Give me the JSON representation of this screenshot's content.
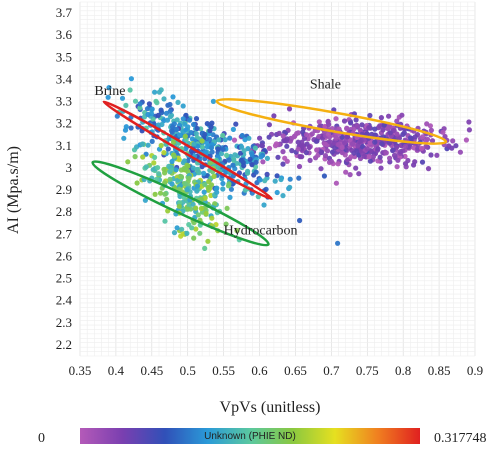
{
  "chart_data": {
    "type": "scatter",
    "xlabel": "VpVs (unitless)",
    "ylabel": "AI (Mpa.s/m)",
    "xlim": [
      0.35,
      0.9
    ],
    "ylim": [
      2.15,
      3.75
    ],
    "x_ticks": [
      "0.35",
      "0.4",
      "0.45",
      "0.5",
      "0.55",
      "0.6",
      "0.65",
      "0.7",
      "0.75",
      "0.8",
      "0.85",
      "0.9"
    ],
    "y_ticks": [
      "2.2",
      "2.3",
      "2.4",
      "2.5",
      "2.6",
      "2.7",
      "2.8",
      "2.9",
      "3",
      "3.1",
      "3.2",
      "3.3",
      "3.4",
      "3.5",
      "3.6",
      "3.7"
    ],
    "grid": true,
    "colorbar": {
      "min_label": "0",
      "max_label": "0.317748",
      "center_label": "Unknown (PHIE ND)",
      "colors": [
        "#b45ab8",
        "#7a3fb0",
        "#3050b8",
        "#2a9ad8",
        "#5ac8a0",
        "#8ac840",
        "#e6e020",
        "#f08020",
        "#e02020"
      ]
    },
    "clusters": [
      {
        "name": "Shale",
        "center": [
          0.74,
          3.12
        ],
        "spread": [
          0.065,
          0.07
        ],
        "count": 520,
        "phie": [
          0.0,
          0.06
        ]
      },
      {
        "name": "Brine",
        "center": [
          0.52,
          3.1
        ],
        "spread": [
          0.055,
          0.09
        ],
        "count": 420,
        "phie": [
          0.07,
          0.16
        ]
      },
      {
        "name": "Hydrocarbon",
        "center": [
          0.5,
          2.9
        ],
        "spread": [
          0.03,
          0.09
        ],
        "count": 260,
        "phie": [
          0.12,
          0.22
        ]
      }
    ],
    "annotations": [
      {
        "text": "Brine",
        "x": 0.37,
        "y": 3.33,
        "ellipse_color": "#e02020",
        "ellipse": {
          "cx": 0.5,
          "cy": 3.08,
          "rx": 0.15,
          "ry": 0.07,
          "angle": 30
        }
      },
      {
        "text": "Shale",
        "x": 0.67,
        "y": 3.36,
        "ellipse_color": "#f5b010",
        "ellipse": {
          "cx": 0.7,
          "cy": 3.21,
          "rx": 0.18,
          "ry": 0.17,
          "angle": 10
        }
      },
      {
        "text": "Hydrocarbon",
        "x": 0.55,
        "y": 2.7,
        "ellipse_color": "#20a040",
        "ellipse": {
          "cx": 0.49,
          "cy": 2.84,
          "rx": 0.15,
          "ry": 0.17,
          "angle": 25
        }
      }
    ]
  }
}
